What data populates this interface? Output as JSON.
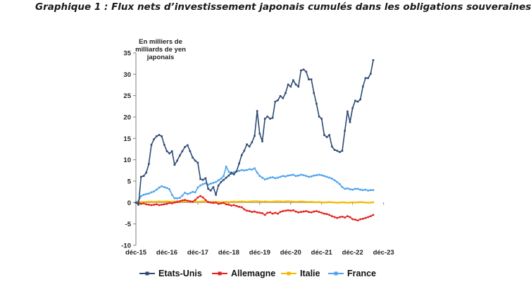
{
  "title": "Graphique 1 : Flux nets d’investissement japonais cumulés dans les obligations souveraines",
  "chart_data": {
    "type": "line",
    "ylabel_lines": [
      "En milliers de",
      "milliards de yen",
      "japonais"
    ],
    "ylim": [
      -10,
      35
    ],
    "yticks": [
      -10,
      -5,
      0,
      5,
      10,
      15,
      20,
      25,
      30,
      35
    ],
    "xticks": [
      "déc-15",
      "déc-16",
      "déc-17",
      "déc-18",
      "déc-19",
      "déc-20",
      "déc-21",
      "déc-22",
      "déc-23"
    ],
    "grid": false,
    "legend_position": "bottom",
    "series": [
      {
        "name": "Etats-Unis",
        "color": "#2e4a73",
        "values": [
          0,
          -0.5,
          6,
          6.2,
          7,
          9,
          13.5,
          14.8,
          15.5,
          15.8,
          15.5,
          13.5,
          12,
          11.5,
          12,
          8.8,
          9.8,
          11,
          12,
          13,
          13.4,
          12,
          10.5,
          9.8,
          9.3,
          5.5,
          5.3,
          5.7,
          3.2,
          2.8,
          3.6,
          1.8,
          4,
          4.8,
          5.3,
          5.8,
          6.3,
          7,
          6.6,
          7.3,
          9.1,
          11.1,
          12.1,
          13.6,
          13.1,
          14.1,
          15.6,
          21.4,
          16.1,
          14.3,
          19.6,
          20.1,
          19.6,
          19.8,
          23.6,
          23.9,
          24.9,
          24.4,
          25.6,
          27.6,
          27.1,
          28.6,
          27.6,
          27.1,
          30.9,
          31.1,
          30.6,
          28.8,
          28.8,
          25.6,
          23.1,
          20.1,
          19.6,
          15.8,
          15.3,
          15.8,
          13.1,
          12.3,
          12.1,
          11.8,
          12.1,
          16.8,
          21.3,
          18.8,
          22.1,
          23.8,
          23.6,
          24.1,
          27.1,
          29.1,
          29.1,
          30.1,
          33.3
        ]
      },
      {
        "name": "Allemagne",
        "color": "#e32121",
        "values": [
          0,
          -0.1,
          -0.3,
          -0.2,
          -0.4,
          -0.5,
          -0.6,
          -0.5,
          -0.4,
          -0.6,
          -0.5,
          -0.4,
          -0.3,
          -0.1,
          -0.2,
          0,
          0.1,
          0.3,
          0.5,
          0.6,
          0.4,
          0.3,
          0.2,
          0.6,
          1.2,
          1.5,
          1.2,
          0.6,
          0.1,
          0,
          -0.1,
          0,
          -0.3,
          -0.2,
          -0.1,
          -0.4,
          -0.5,
          -0.7,
          -0.6,
          -0.8,
          -1,
          -1.1,
          -1.6,
          -1.9,
          -2,
          -2.2,
          -2.1,
          -2.3,
          -2.4,
          -2.5,
          -2.9,
          -2.4,
          -2.3,
          -2.6,
          -2.4,
          -2.6,
          -2.2,
          -2,
          -1.9,
          -1.8,
          -1.9,
          -1.8,
          -2.1,
          -2.3,
          -2.2,
          -2.1,
          -2,
          -2.2,
          -2.3,
          -2.1,
          -2,
          -2.2,
          -2.4,
          -2.6,
          -2.7,
          -2.9,
          -3.2,
          -3.4,
          -3.6,
          -3.4,
          -3.3,
          -3.5,
          -3.2,
          -3.4,
          -3.9,
          -4,
          -4.2,
          -3.9,
          -3.8,
          -3.6,
          -3.4,
          -3.2,
          -2.9
        ]
      },
      {
        "name": "Italie",
        "color": "#f4b800",
        "values": [
          0,
          0.05,
          0.1,
          0.1,
          0.15,
          0.2,
          0.2,
          0.15,
          0.2,
          0.25,
          0.2,
          0.2,
          0.25,
          0.2,
          0.2,
          0.25,
          0.3,
          0.25,
          0.2,
          0.25,
          0.3,
          0.25,
          0.2,
          0.2,
          0.15,
          0.2,
          0.25,
          0.2,
          0.15,
          0.1,
          0.15,
          0.1,
          0.1,
          0.05,
          0.1,
          0.15,
          0.1,
          0.15,
          0.2,
          0.15,
          0.2,
          0.25,
          0.2,
          0.15,
          0.2,
          0.25,
          0.3,
          0.3,
          0.25,
          0.2,
          0.25,
          0.2,
          0.15,
          0.2,
          0.25,
          0.3,
          0.25,
          0.2,
          0.25,
          0.3,
          0.25,
          0.2,
          0.15,
          0.2,
          0.25,
          0.2,
          0.15,
          0.1,
          0.15,
          0.1,
          0.05,
          0.1,
          0.05,
          0,
          0.05,
          0.1,
          0.05,
          0,
          -0.05,
          0,
          0.05,
          0,
          -0.05,
          0,
          0.05,
          0,
          0.05,
          0.1,
          0.05,
          0,
          -0.05,
          0,
          0.05
        ]
      },
      {
        "name": "France",
        "color": "#4da3ee",
        "values": [
          0,
          0.4,
          1.5,
          1.8,
          2,
          2.1,
          2.4,
          2.6,
          3,
          3.5,
          3.8,
          3.6,
          3.4,
          3.1,
          1.8,
          1,
          1,
          1.1,
          1.6,
          2.3,
          2,
          2.2,
          2.5,
          2.4,
          3.5,
          4,
          4.3,
          4.5,
          4.2,
          4.4,
          4.6,
          4.8,
          5.2,
          5.6,
          6.2,
          8.4,
          7.2,
          6.7,
          7.1,
          7.3,
          7.4,
          7.6,
          7.5,
          7.6,
          7.8,
          7.7,
          8,
          7,
          6.2,
          5.8,
          5.4,
          5.6,
          5.8,
          5.9,
          5.7,
          5.8,
          6,
          6.2,
          6.1,
          6.3,
          6.4,
          6.5,
          6.2,
          6.3,
          6.5,
          6.4,
          6.2,
          6,
          6.1,
          6.3,
          6.4,
          6.5,
          6.4,
          6.2,
          6,
          5.8,
          5.6,
          5.2,
          4.8,
          4.3,
          3.6,
          3.2,
          3.3,
          3.1,
          3,
          3.2,
          3.2,
          3,
          2.9,
          3,
          2.8,
          2.9,
          2.9
        ]
      }
    ]
  }
}
